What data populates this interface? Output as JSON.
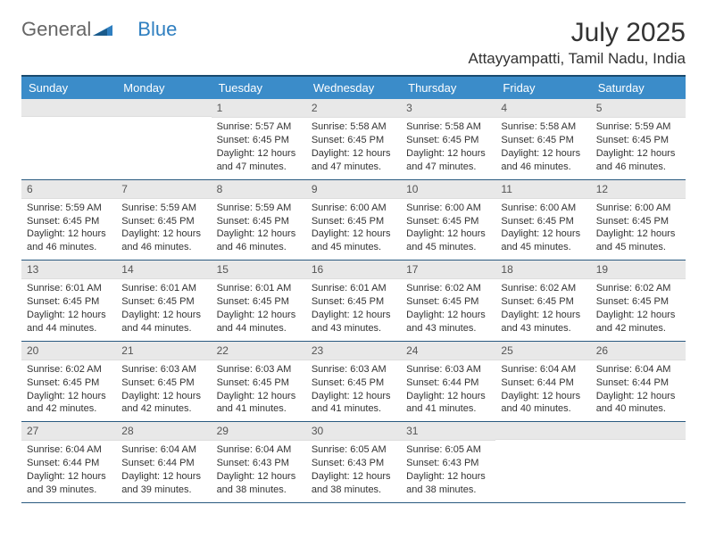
{
  "logo": {
    "text1": "General",
    "text2": "Blue"
  },
  "title": "July 2025",
  "location": "Attayyampatti, Tamil Nadu, India",
  "weekdays": [
    "Sunday",
    "Monday",
    "Tuesday",
    "Wednesday",
    "Thursday",
    "Friday",
    "Saturday"
  ],
  "colors": {
    "header_bg": "#3b8cc9",
    "divider": "#1a4a6e",
    "day_num_bg": "#e8e8e8",
    "row_border": "#2a5a80"
  },
  "weeks": [
    [
      {
        "num": "",
        "sunrise": "",
        "sunset": "",
        "daylight": ""
      },
      {
        "num": "",
        "sunrise": "",
        "sunset": "",
        "daylight": ""
      },
      {
        "num": "1",
        "sunrise": "Sunrise: 5:57 AM",
        "sunset": "Sunset: 6:45 PM",
        "daylight": "Daylight: 12 hours and 47 minutes."
      },
      {
        "num": "2",
        "sunrise": "Sunrise: 5:58 AM",
        "sunset": "Sunset: 6:45 PM",
        "daylight": "Daylight: 12 hours and 47 minutes."
      },
      {
        "num": "3",
        "sunrise": "Sunrise: 5:58 AM",
        "sunset": "Sunset: 6:45 PM",
        "daylight": "Daylight: 12 hours and 47 minutes."
      },
      {
        "num": "4",
        "sunrise": "Sunrise: 5:58 AM",
        "sunset": "Sunset: 6:45 PM",
        "daylight": "Daylight: 12 hours and 46 minutes."
      },
      {
        "num": "5",
        "sunrise": "Sunrise: 5:59 AM",
        "sunset": "Sunset: 6:45 PM",
        "daylight": "Daylight: 12 hours and 46 minutes."
      }
    ],
    [
      {
        "num": "6",
        "sunrise": "Sunrise: 5:59 AM",
        "sunset": "Sunset: 6:45 PM",
        "daylight": "Daylight: 12 hours and 46 minutes."
      },
      {
        "num": "7",
        "sunrise": "Sunrise: 5:59 AM",
        "sunset": "Sunset: 6:45 PM",
        "daylight": "Daylight: 12 hours and 46 minutes."
      },
      {
        "num": "8",
        "sunrise": "Sunrise: 5:59 AM",
        "sunset": "Sunset: 6:45 PM",
        "daylight": "Daylight: 12 hours and 46 minutes."
      },
      {
        "num": "9",
        "sunrise": "Sunrise: 6:00 AM",
        "sunset": "Sunset: 6:45 PM",
        "daylight": "Daylight: 12 hours and 45 minutes."
      },
      {
        "num": "10",
        "sunrise": "Sunrise: 6:00 AM",
        "sunset": "Sunset: 6:45 PM",
        "daylight": "Daylight: 12 hours and 45 minutes."
      },
      {
        "num": "11",
        "sunrise": "Sunrise: 6:00 AM",
        "sunset": "Sunset: 6:45 PM",
        "daylight": "Daylight: 12 hours and 45 minutes."
      },
      {
        "num": "12",
        "sunrise": "Sunrise: 6:00 AM",
        "sunset": "Sunset: 6:45 PM",
        "daylight": "Daylight: 12 hours and 45 minutes."
      }
    ],
    [
      {
        "num": "13",
        "sunrise": "Sunrise: 6:01 AM",
        "sunset": "Sunset: 6:45 PM",
        "daylight": "Daylight: 12 hours and 44 minutes."
      },
      {
        "num": "14",
        "sunrise": "Sunrise: 6:01 AM",
        "sunset": "Sunset: 6:45 PM",
        "daylight": "Daylight: 12 hours and 44 minutes."
      },
      {
        "num": "15",
        "sunrise": "Sunrise: 6:01 AM",
        "sunset": "Sunset: 6:45 PM",
        "daylight": "Daylight: 12 hours and 44 minutes."
      },
      {
        "num": "16",
        "sunrise": "Sunrise: 6:01 AM",
        "sunset": "Sunset: 6:45 PM",
        "daylight": "Daylight: 12 hours and 43 minutes."
      },
      {
        "num": "17",
        "sunrise": "Sunrise: 6:02 AM",
        "sunset": "Sunset: 6:45 PM",
        "daylight": "Daylight: 12 hours and 43 minutes."
      },
      {
        "num": "18",
        "sunrise": "Sunrise: 6:02 AM",
        "sunset": "Sunset: 6:45 PM",
        "daylight": "Daylight: 12 hours and 43 minutes."
      },
      {
        "num": "19",
        "sunrise": "Sunrise: 6:02 AM",
        "sunset": "Sunset: 6:45 PM",
        "daylight": "Daylight: 12 hours and 42 minutes."
      }
    ],
    [
      {
        "num": "20",
        "sunrise": "Sunrise: 6:02 AM",
        "sunset": "Sunset: 6:45 PM",
        "daylight": "Daylight: 12 hours and 42 minutes."
      },
      {
        "num": "21",
        "sunrise": "Sunrise: 6:03 AM",
        "sunset": "Sunset: 6:45 PM",
        "daylight": "Daylight: 12 hours and 42 minutes."
      },
      {
        "num": "22",
        "sunrise": "Sunrise: 6:03 AM",
        "sunset": "Sunset: 6:45 PM",
        "daylight": "Daylight: 12 hours and 41 minutes."
      },
      {
        "num": "23",
        "sunrise": "Sunrise: 6:03 AM",
        "sunset": "Sunset: 6:45 PM",
        "daylight": "Daylight: 12 hours and 41 minutes."
      },
      {
        "num": "24",
        "sunrise": "Sunrise: 6:03 AM",
        "sunset": "Sunset: 6:44 PM",
        "daylight": "Daylight: 12 hours and 41 minutes."
      },
      {
        "num": "25",
        "sunrise": "Sunrise: 6:04 AM",
        "sunset": "Sunset: 6:44 PM",
        "daylight": "Daylight: 12 hours and 40 minutes."
      },
      {
        "num": "26",
        "sunrise": "Sunrise: 6:04 AM",
        "sunset": "Sunset: 6:44 PM",
        "daylight": "Daylight: 12 hours and 40 minutes."
      }
    ],
    [
      {
        "num": "27",
        "sunrise": "Sunrise: 6:04 AM",
        "sunset": "Sunset: 6:44 PM",
        "daylight": "Daylight: 12 hours and 39 minutes."
      },
      {
        "num": "28",
        "sunrise": "Sunrise: 6:04 AM",
        "sunset": "Sunset: 6:44 PM",
        "daylight": "Daylight: 12 hours and 39 minutes."
      },
      {
        "num": "29",
        "sunrise": "Sunrise: 6:04 AM",
        "sunset": "Sunset: 6:43 PM",
        "daylight": "Daylight: 12 hours and 38 minutes."
      },
      {
        "num": "30",
        "sunrise": "Sunrise: 6:05 AM",
        "sunset": "Sunset: 6:43 PM",
        "daylight": "Daylight: 12 hours and 38 minutes."
      },
      {
        "num": "31",
        "sunrise": "Sunrise: 6:05 AM",
        "sunset": "Sunset: 6:43 PM",
        "daylight": "Daylight: 12 hours and 38 minutes."
      },
      {
        "num": "",
        "sunrise": "",
        "sunset": "",
        "daylight": ""
      },
      {
        "num": "",
        "sunrise": "",
        "sunset": "",
        "daylight": ""
      }
    ]
  ]
}
